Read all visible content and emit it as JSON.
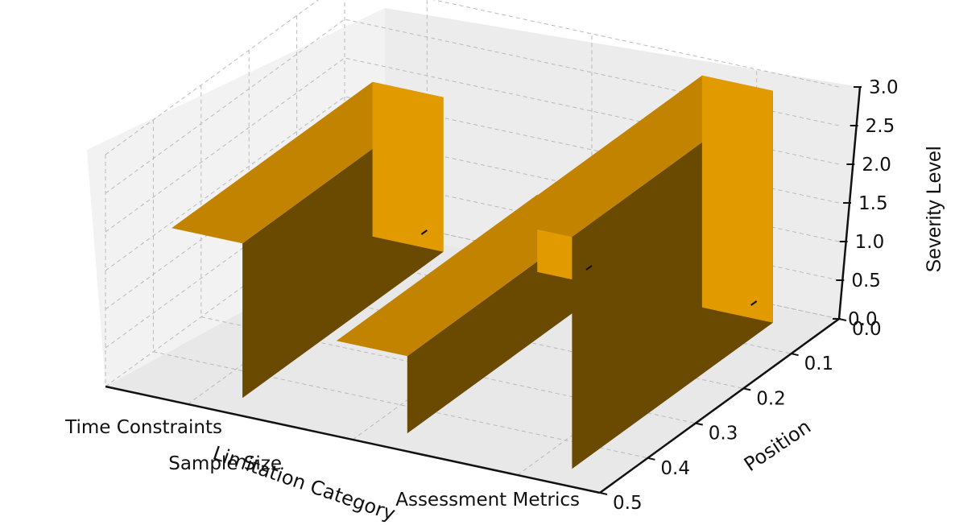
{
  "chart_data": {
    "type": "bar",
    "categories": [
      "Time Constraints",
      "Sample Size",
      "Assessment Metrics"
    ],
    "values": [
      2.0,
      1.0,
      3.0
    ],
    "xlabel": "Limitation Category",
    "ylabel": "Position",
    "zlabel": "Severity Level",
    "y_ticks": [
      "0.0",
      "0.1",
      "0.2",
      "0.3",
      "0.4",
      "0.5"
    ],
    "z_ticks": [
      "0.0",
      "0.5",
      "1.0",
      "1.5",
      "2.0",
      "2.5",
      "3.0"
    ],
    "ylim": [
      0,
      0.5
    ],
    "zlim": [
      0,
      3.0
    ],
    "grid": true,
    "projection": "3d",
    "colors": {
      "front": "#e19a00",
      "top": "#c28400",
      "side": "#6a4a00",
      "pane": "#f2f2f2"
    }
  }
}
